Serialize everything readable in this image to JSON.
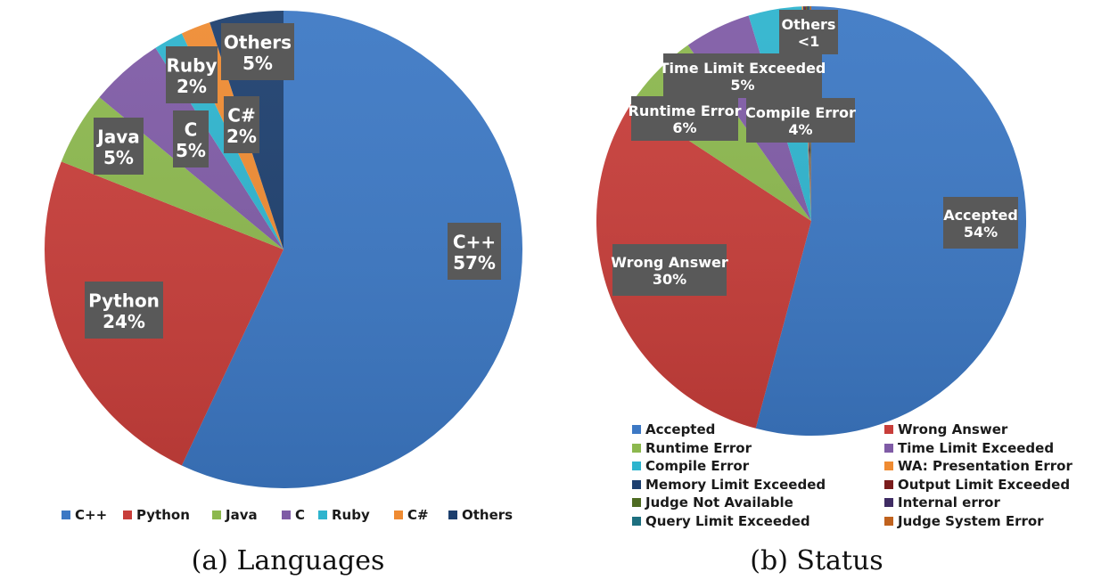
{
  "chart_data": [
    {
      "type": "pie",
      "caption": "(a) Languages",
      "categories": [
        "C++",
        "Python",
        "Java",
        "C",
        "Ruby",
        "C#",
        "Others"
      ],
      "values": [
        57,
        24,
        5,
        5,
        2,
        2,
        5
      ],
      "data_labels": [
        [
          "C++",
          "57%"
        ],
        [
          "Python",
          "24%"
        ],
        [
          "Java",
          "5%"
        ],
        [
          "C",
          "5%"
        ],
        [
          "Ruby",
          "2%"
        ],
        [
          "C#",
          "2%"
        ],
        [
          "Others",
          "5%"
        ]
      ],
      "colors": [
        "#3C78C4",
        "#C83E3A",
        "#8CB84E",
        "#7F5BA6",
        "#2EB4CE",
        "#EF8B32",
        "#1D3F6E"
      ],
      "legend": "bottom"
    },
    {
      "type": "pie",
      "caption": "(b) Status",
      "categories": [
        "Accepted",
        "Wrong Answer",
        "Runtime Error",
        "Time Limit Exceeded",
        "Compile Error",
        "WA: Presentation Error",
        "Memory Limit Exceeded",
        "Output Limit Exceeded",
        "Judge Not Available",
        "Internal error",
        "Query Limit Exceeded",
        "Judge System Error"
      ],
      "values": [
        54,
        30,
        6,
        5,
        4,
        0.1,
        0.1,
        0.1,
        0.1,
        0.1,
        0.1,
        0.1
      ],
      "data_labels": [
        [
          "Accepted",
          "54%"
        ],
        [
          "Wrong Answer",
          "30%"
        ],
        [
          "Runtime Error",
          "6%"
        ],
        [
          "Time Limit Exceeded",
          "5%"
        ],
        [
          "Compile Error",
          "4%"
        ],
        [
          "Others",
          "<1"
        ]
      ],
      "colors": [
        "#3C78C4",
        "#C83E3A",
        "#8CB84E",
        "#7F5BA6",
        "#2EB4CE",
        "#EF8B32",
        "#1D3F6E",
        "#7A1C1C",
        "#4E6B22",
        "#3F2C63",
        "#1D6F7F",
        "#C0621E"
      ],
      "legend": "bottom"
    }
  ]
}
